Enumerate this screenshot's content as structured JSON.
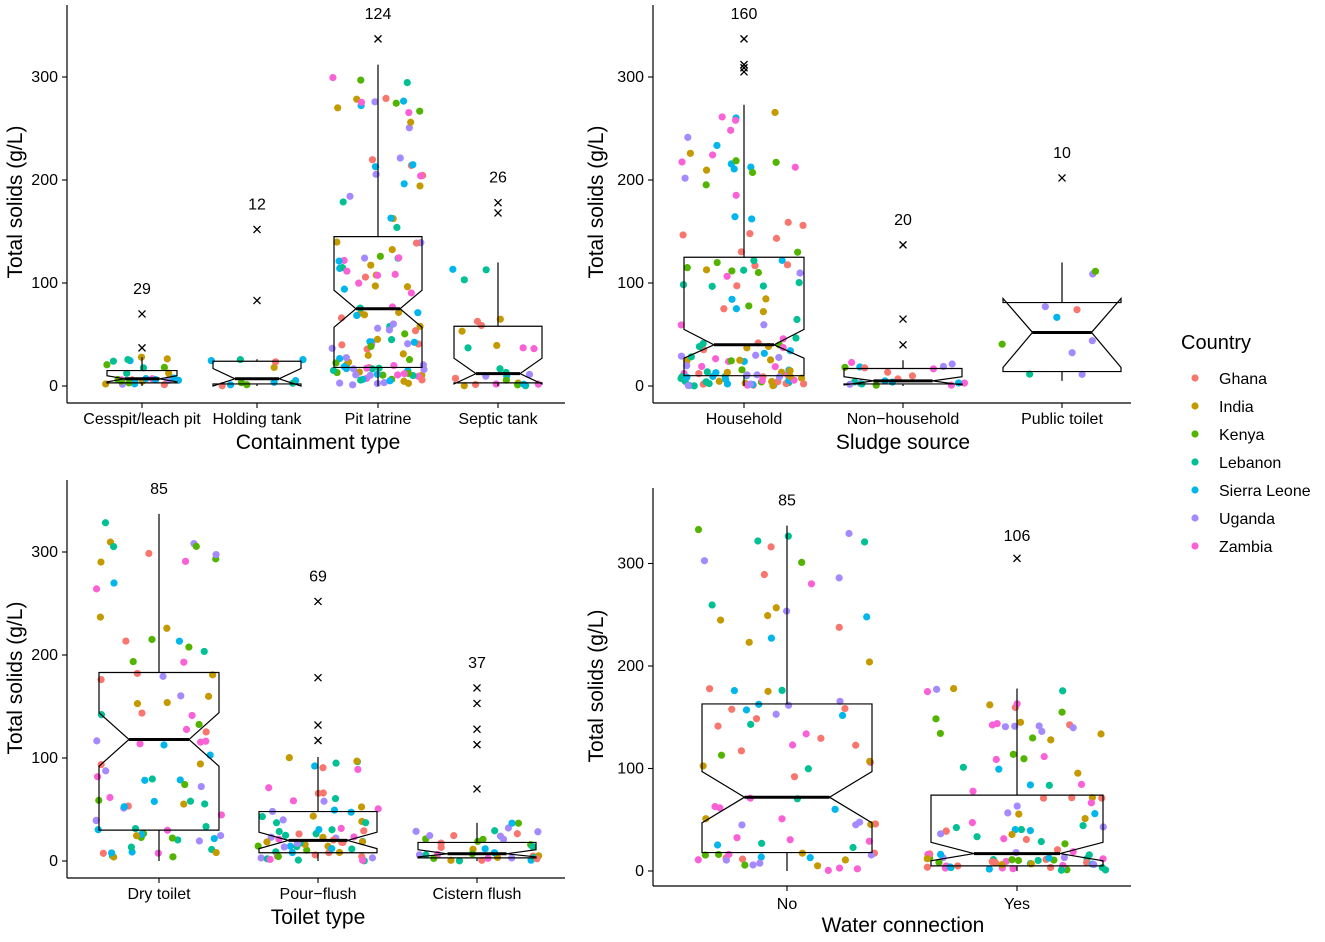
{
  "colors": {
    "Ghana": "#F8766D",
    "India": "#C49A00",
    "Kenya": "#53B400",
    "Lebanon": "#00C094",
    "Sierra Leone": "#00B6EB",
    "Uganda": "#A58AFF",
    "Zambia": "#FB61D7"
  },
  "legend": {
    "title": "Country",
    "items": [
      "Ghana",
      "India",
      "Kenya",
      "Lebanon",
      "Sierra Leone",
      "Uganda",
      "Zambia"
    ]
  },
  "chart_data": [
    {
      "type": "boxplot",
      "notched": true,
      "xlabel": "Containment type",
      "ylabel": "Total solids (g/L)",
      "ylim": [
        -10,
        370
      ],
      "yticks": [
        0,
        100,
        200,
        300
      ],
      "categories": [
        "Cesspit/leach pit",
        "Holding tank",
        "Pit latrine",
        "Septic tank"
      ],
      "counts": [
        29,
        12,
        124,
        26
      ],
      "boxes": [
        {
          "q1": 3,
          "median": 7,
          "q3": 15,
          "whisker_low": 0,
          "whisker_high": 28,
          "notch_low": 4,
          "notch_high": 10,
          "outliers": [
            70,
            37
          ]
        },
        {
          "q1": 2,
          "median": 7,
          "q3": 24,
          "whisker_low": 0,
          "whisker_high": 26,
          "notch_low": 0,
          "notch_high": 17,
          "outliers": [
            152,
            83
          ]
        },
        {
          "q1": 18,
          "median": 75,
          "q3": 145,
          "whisker_low": 0,
          "whisker_high": 312,
          "notch_low": 57,
          "notch_high": 93,
          "outliers": [
            337
          ]
        },
        {
          "q1": 3,
          "median": 12,
          "q3": 58,
          "whisker_low": 0,
          "whisker_high": 120,
          "notch_low": 2,
          "notch_high": 27,
          "outliers": [
            178,
            168
          ]
        }
      ]
    },
    {
      "type": "boxplot",
      "notched": true,
      "xlabel": "Sludge source",
      "ylabel": "Total solids (g/L)",
      "ylim": [
        -10,
        370
      ],
      "yticks": [
        0,
        100,
        200,
        300
      ],
      "categories": [
        "Household",
        "Non−household",
        "Public toilet"
      ],
      "counts": [
        160,
        20,
        10
      ],
      "boxes": [
        {
          "q1": 10,
          "median": 40,
          "q3": 125,
          "whisker_low": 0,
          "whisker_high": 273,
          "notch_low": 27,
          "notch_high": 55,
          "outliers": [
            337,
            312,
            309,
            305
          ]
        },
        {
          "q1": 2,
          "median": 5,
          "q3": 17,
          "whisker_low": 0,
          "whisker_high": 25,
          "notch_low": 1,
          "notch_high": 9,
          "outliers": [
            137,
            65,
            40
          ]
        },
        {
          "q1": 14,
          "median": 52,
          "q3": 81,
          "whisker_low": 5,
          "whisker_high": 120,
          "notch_low": 18,
          "notch_high": 85,
          "outliers": [
            202
          ]
        }
      ]
    },
    {
      "type": "boxplot",
      "notched": true,
      "xlabel": "Toilet type",
      "ylabel": "Total solids (g/L)",
      "ylim": [
        -10,
        370
      ],
      "yticks": [
        0,
        100,
        200,
        300
      ],
      "categories": [
        "Dry toilet",
        "Pour−flush",
        "Cistern flush"
      ],
      "counts": [
        85,
        69,
        37
      ],
      "boxes": [
        {
          "q1": 30,
          "median": 118,
          "q3": 183,
          "whisker_low": 0,
          "whisker_high": 337,
          "notch_low": 92,
          "notch_high": 144,
          "outliers": []
        },
        {
          "q1": 8,
          "median": 20,
          "q3": 48,
          "whisker_low": 0,
          "whisker_high": 101,
          "notch_low": 12,
          "notch_high": 28,
          "outliers": [
            252,
            178,
            132,
            117
          ]
        },
        {
          "q1": 3,
          "median": 7,
          "q3": 18,
          "whisker_low": 0,
          "whisker_high": 37,
          "notch_low": 4,
          "notch_high": 11,
          "outliers": [
            168,
            153,
            128,
            113,
            70
          ]
        }
      ]
    },
    {
      "type": "boxplot",
      "notched": true,
      "xlabel": "Water connection",
      "ylabel": "Total solids (g/L)",
      "ylim": [
        -10,
        370
      ],
      "yticks": [
        0,
        100,
        200,
        300
      ],
      "categories": [
        "No",
        "Yes"
      ],
      "counts": [
        85,
        106
      ],
      "boxes": [
        {
          "q1": 18,
          "median": 72,
          "q3": 163,
          "whisker_low": 0,
          "whisker_high": 337,
          "notch_low": 47,
          "notch_high": 97,
          "outliers": []
        },
        {
          "q1": 5,
          "median": 17,
          "q3": 74,
          "whisker_low": 0,
          "whisker_high": 178,
          "notch_low": 10,
          "notch_high": 28,
          "outliers": [
            305
          ]
        }
      ]
    }
  ]
}
